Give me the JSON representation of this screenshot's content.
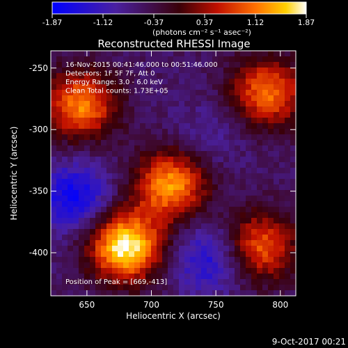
{
  "colorbar": {
    "ticks": [
      "-1.87",
      "-1.12",
      "-0.37",
      "0.37",
      "1.12",
      "1.87"
    ],
    "range": [
      -1.87,
      1.87
    ],
    "units_label": "(photons cm⁻² s⁻¹ asec⁻²)"
  },
  "chart_data": {
    "type": "heatmap",
    "title": "Reconstructed RHESSI Image",
    "xlabel": "Heliocentric X (arcsec)",
    "ylabel": "Heliocentric Y (arcsec)",
    "xlim": [
      622,
      812
    ],
    "ylim": [
      -435,
      -236
    ],
    "x_ticks": [
      "650",
      "700",
      "750",
      "800"
    ],
    "y_ticks": [
      "-250",
      "-300",
      "-350",
      "-400"
    ],
    "annotations": [
      "16-Nov-2015 00:41:46.000 to 00:51:46.000",
      "Detectors: 1F 5F 7F, Att 0",
      "Energy Range: 3.0 - 6.0 keV",
      "Clean    Total counts: 1.73E+05"
    ],
    "peak_label": "Position of Peak = [669,-413]",
    "sources": [
      {
        "x": 680,
        "y": -395,
        "value": 1.87
      },
      {
        "x": 715,
        "y": -345,
        "value": 1.3
      },
      {
        "x": 645,
        "y": -280,
        "value": 1.2
      },
      {
        "x": 790,
        "y": -270,
        "value": 1.1
      },
      {
        "x": 785,
        "y": -395,
        "value": 1.0
      },
      {
        "x": 640,
        "y": -355,
        "value": -1.7
      },
      {
        "x": 745,
        "y": -305,
        "value": -0.9
      },
      {
        "x": 745,
        "y": -405,
        "value": -1.5
      }
    ]
  },
  "footer": {
    "timestamp": "9-Oct-2017 00:21"
  }
}
